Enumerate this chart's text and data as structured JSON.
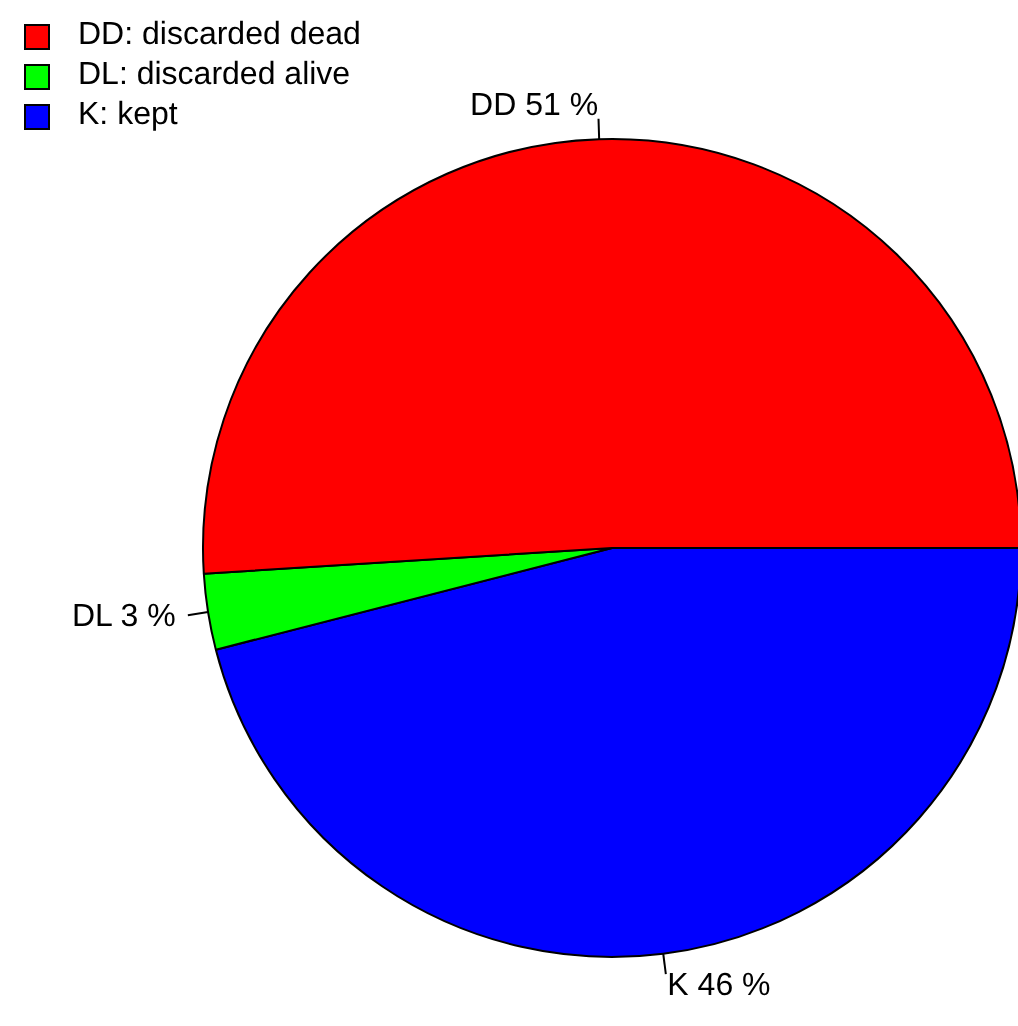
{
  "chart_data": {
    "type": "pie",
    "categories": [
      "DD: discarded dead",
      "DL: discarded alive",
      "K: kept"
    ],
    "values": [
      51,
      3,
      46
    ],
    "colors": [
      "#ff0000",
      "#00ff00",
      "#0000ff"
    ],
    "value_labels": [
      "DD 51 %",
      "DL 3 %",
      "K 46 %"
    ],
    "legend": "top left"
  }
}
